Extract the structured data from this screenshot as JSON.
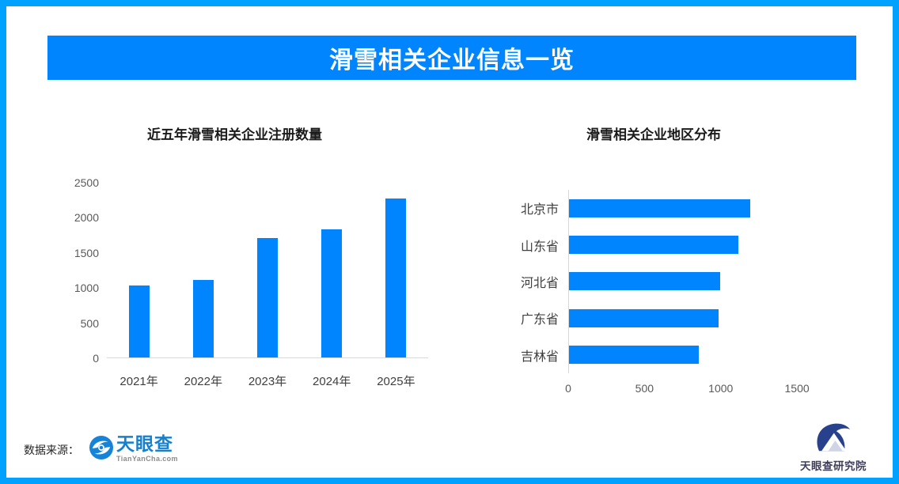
{
  "page": {
    "title": "滑雪相关企业信息一览",
    "footer": {
      "source_label": "数据来源：",
      "source_logo_name": "天眼查",
      "source_logo_domain": "TianYanCha.com",
      "research_logo_name": "天眼查研究院"
    },
    "colors": {
      "accent_blue": "#0085ff",
      "frame_border_blue": "#00a1ff",
      "tianyancha_blue": "#1480cf",
      "research_navy": "#27418c",
      "axis_line_gray": "#d9d9d9"
    }
  },
  "chart_data": [
    {
      "type": "bar",
      "orientation": "vertical",
      "title": "近五年滑雪相关企业注册数量",
      "categories": [
        "2021年",
        "2022年",
        "2023年",
        "2024年",
        "2025年"
      ],
      "values": [
        1030,
        1100,
        1700,
        1820,
        2260
      ],
      "xlabel": "",
      "ylabel": "",
      "ylim": [
        0,
        2500
      ],
      "yticks": [
        0,
        500,
        1000,
        1500,
        2000,
        2500
      ],
      "grid": false,
      "legend": false,
      "bar_color": "#0085ff"
    },
    {
      "type": "bar",
      "orientation": "horizontal",
      "title": "滑雪相关企业地区分布",
      "categories": [
        "北京市",
        "山东省",
        "河北省",
        "广东省",
        "吉林省"
      ],
      "values": [
        1190,
        1110,
        990,
        980,
        850
      ],
      "xlabel": "",
      "ylabel": "",
      "xlim": [
        0,
        1790
      ],
      "xticks": [
        0,
        500,
        1000,
        1500
      ],
      "grid": false,
      "legend": false,
      "bar_color": "#0085ff"
    }
  ]
}
